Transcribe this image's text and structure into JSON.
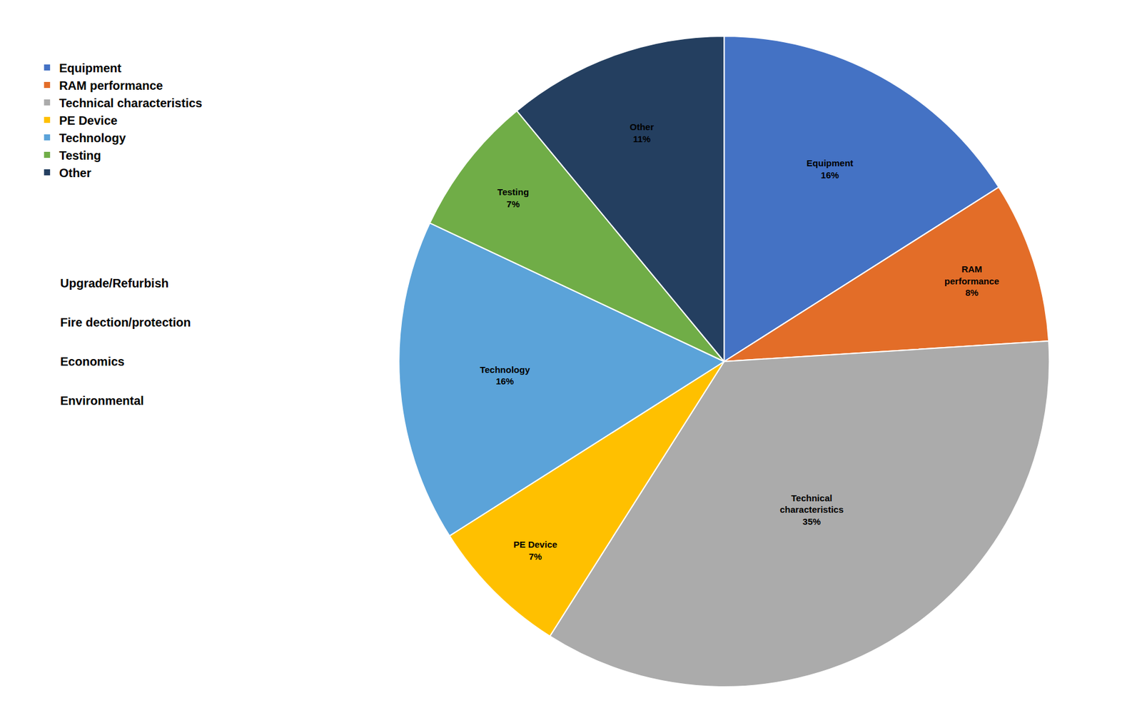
{
  "chart_data": {
    "type": "pie",
    "categories": [
      "Equipment",
      "RAM performance",
      "Technical characteristics",
      "PE Device",
      "Technology",
      "Testing",
      "Other"
    ],
    "values": [
      16,
      8,
      35,
      7,
      16,
      7,
      11
    ],
    "value_labels": [
      "Equipment\n16%",
      "RAM\nperformance\n8%",
      "Technical\ncharacteristics\n35%",
      "PE Device\n7%",
      "Technology\n16%",
      "Testing\n7%",
      "Other\n11%"
    ],
    "colors": [
      "#4472C4",
      "#E36D28",
      "#ABABAB",
      "#FFC000",
      "#5BA3D9",
      "#70AD47",
      "#243F60"
    ],
    "legend": "upper left",
    "annotations": [
      "Upgrade/Refurbish",
      "Fire dection/protection",
      "Economics",
      "Environmental"
    ]
  }
}
